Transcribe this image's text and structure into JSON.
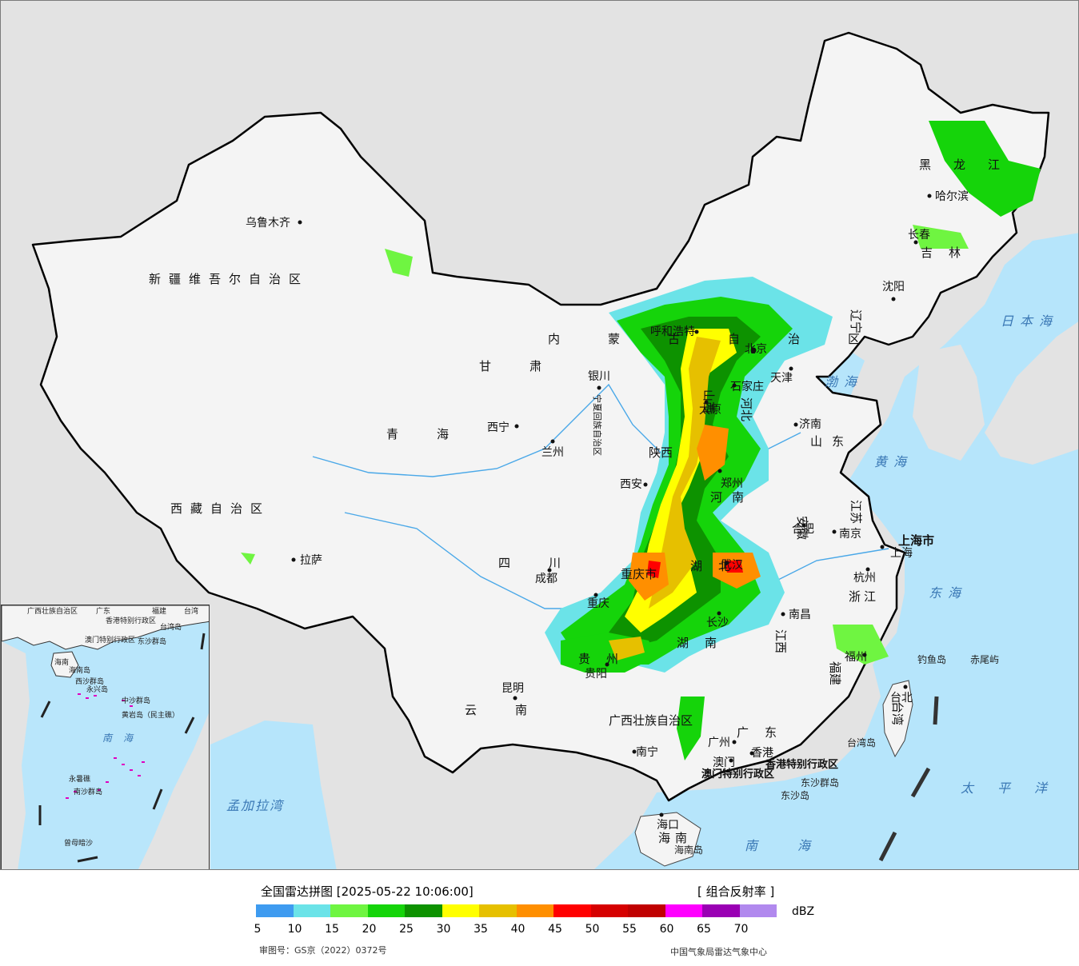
{
  "map": {
    "cities": [
      {
        "name": "乌鲁木齐"
      },
      {
        "name": "拉萨"
      },
      {
        "name": "西宁"
      },
      {
        "name": "兰州"
      },
      {
        "name": "银川"
      },
      {
        "name": "呼和浩特"
      },
      {
        "name": "北京"
      },
      {
        "name": "天津"
      },
      {
        "name": "石家庄"
      },
      {
        "name": "太原"
      },
      {
        "name": "济南"
      },
      {
        "name": "郑州"
      },
      {
        "name": "西安"
      },
      {
        "name": "成都"
      },
      {
        "name": "重庆"
      },
      {
        "name": "武汉"
      },
      {
        "name": "合肥"
      },
      {
        "name": "南京"
      },
      {
        "name": "上海"
      },
      {
        "name": "杭州"
      },
      {
        "name": "南昌"
      },
      {
        "name": "长沙"
      },
      {
        "name": "福州"
      },
      {
        "name": "台北"
      },
      {
        "name": "贵阳"
      },
      {
        "name": "昆明"
      },
      {
        "name": "南宁"
      },
      {
        "name": "广州"
      },
      {
        "name": "香港"
      },
      {
        "name": "澳门"
      },
      {
        "name": "海口"
      },
      {
        "name": "沈阳"
      },
      {
        "name": "长春"
      },
      {
        "name": "哈尔滨"
      }
    ],
    "provinces": [
      "新疆维吾尔自治区",
      "西藏自治区",
      "青海",
      "甘肃",
      "内蒙古自治区",
      "宁夏回族自治区",
      "陕西",
      "山西",
      "河北",
      "河南",
      "山东",
      "江苏",
      "安徽",
      "湖北",
      "四川",
      "重庆市",
      "贵州",
      "云南",
      "湖南",
      "江西",
      "浙江",
      "福建",
      "广东",
      "广西壮族自治区",
      "海南",
      "台湾",
      "上海市",
      "北京市",
      "天津市",
      "辽宁",
      "吉林",
      "黑龙江"
    ],
    "sars": [
      "香港特别行政区",
      "澳门特别行政区"
    ],
    "seas": [
      "日本海",
      "渤海",
      "黄海",
      "东海",
      "太平洋",
      "南海",
      "孟加拉湾"
    ],
    "islands": [
      "钓鱼岛",
      "赤尾屿",
      "台湾岛",
      "海南岛",
      "东沙群岛",
      "东沙岛"
    ],
    "inset_labels": [
      "广西壮族自治区",
      "广东",
      "福建",
      "台湾",
      "香港特别行政区",
      "台湾岛",
      "澳门特别行政区",
      "东沙群岛",
      "海南",
      "海南岛",
      "西沙群岛",
      "永兴岛",
      "中沙群岛",
      "黄岩岛（民主礁）",
      "南海",
      "永暑礁",
      "南沙群岛",
      "曾母暗沙"
    ],
    "radar_echo_levels_dbz": [
      5,
      10,
      15,
      20,
      25,
      30,
      35,
      40,
      45,
      50,
      55,
      60,
      65,
      70
    ]
  },
  "legend": {
    "title": "全国雷达拼图 [2025-05-22 10:06:00]",
    "product": "[ 组合反射率 ]",
    "unit": "dBZ",
    "ticks": [
      "5",
      "10",
      "15",
      "20",
      "25",
      "30",
      "35",
      "40",
      "45",
      "50",
      "55",
      "60",
      "65",
      "70"
    ],
    "colors": [
      "#3e9bf0",
      "#6be3e8",
      "#6ff541",
      "#15d40a",
      "#0d9200",
      "#ffff00",
      "#e6c000",
      "#ff8f00",
      "#ff0000",
      "#d60000",
      "#c00000",
      "#ff00ff",
      "#9a00b4",
      "#b189ee"
    ],
    "approval": "审图号：GS京（2022）0372号",
    "credit": "中国气象局雷达气象中心"
  }
}
